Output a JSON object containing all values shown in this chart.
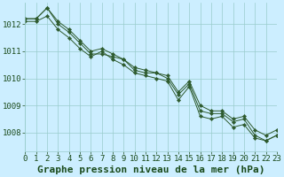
{
  "title": "Graphe pression niveau de la mer (hPa)",
  "background_color": "#cceeff",
  "grid_color": "#99cccc",
  "line_color": "#2d5a2d",
  "xlim": [
    0,
    23
  ],
  "ylim": [
    1007.3,
    1012.8
  ],
  "yticks": [
    1008,
    1009,
    1010,
    1011,
    1012
  ],
  "xticks": [
    0,
    1,
    2,
    3,
    4,
    5,
    6,
    7,
    8,
    9,
    10,
    11,
    12,
    13,
    14,
    15,
    16,
    17,
    18,
    19,
    20,
    21,
    22,
    23
  ],
  "series": [
    [
      1012.2,
      1012.2,
      1012.6,
      1012.1,
      1011.8,
      1011.4,
      1011.0,
      1011.1,
      1010.9,
      1010.7,
      1010.4,
      1010.3,
      1010.2,
      1010.1,
      1009.5,
      1009.9,
      1009.0,
      1008.8,
      1008.8,
      1008.5,
      1008.6,
      1008.1,
      1007.9,
      1008.1
    ],
    [
      1012.2,
      1012.2,
      1012.6,
      1012.0,
      1011.7,
      1011.3,
      1010.9,
      1010.9,
      1010.8,
      1010.7,
      1010.3,
      1010.2,
      1010.2,
      1010.0,
      1009.4,
      1009.8,
      1008.8,
      1008.7,
      1008.7,
      1008.4,
      1008.5,
      1007.9,
      1007.7,
      1007.9
    ],
    [
      1012.1,
      1012.1,
      1012.3,
      1011.8,
      1011.5,
      1011.1,
      1010.8,
      1011.0,
      1010.7,
      1010.5,
      1010.2,
      1010.1,
      1010.0,
      1009.9,
      1009.2,
      1009.7,
      1008.6,
      1008.5,
      1008.6,
      1008.2,
      1008.3,
      1007.8,
      1007.7,
      1007.9
    ]
  ],
  "tick_fontsize": 6.5,
  "title_fontsize": 8,
  "title_color": "#1a4a1a",
  "tick_color": "#1a4a1a",
  "marker": "D",
  "marker_size": 2.2,
  "linewidth": 0.7,
  "fig_width": 3.2,
  "fig_height": 2.0,
  "dpi": 100
}
